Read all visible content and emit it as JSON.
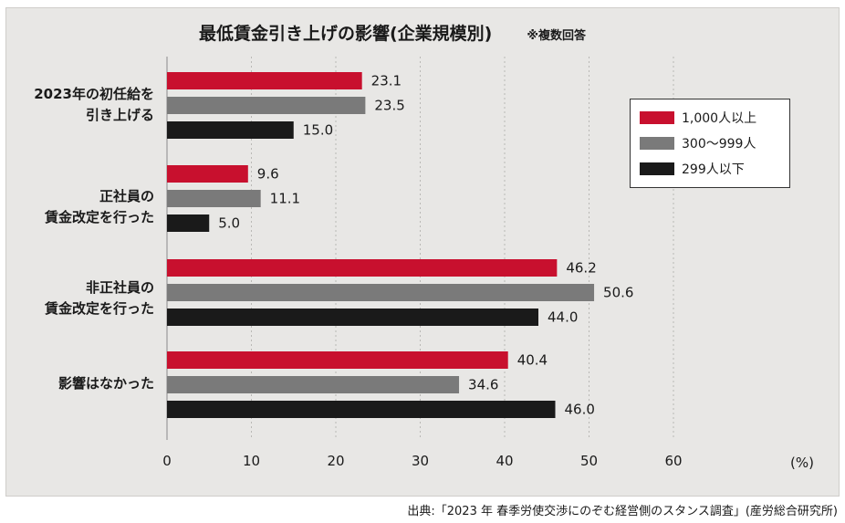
{
  "chart_data": {
    "type": "bar",
    "orientation": "horizontal",
    "title": "最低賃金引き上げの影響(企業規模別)",
    "note": "※複数回答",
    "categories": [
      "2023年の初任給を\n引き上げる",
      "正社員の\n賃金改定を行った",
      "非正社員の\n賃金改定を行った",
      "影響はなかった"
    ],
    "series": [
      {
        "name": "1,000人以上",
        "color": "#c8102e",
        "values": [
          23.1,
          9.6,
          46.2,
          40.4
        ]
      },
      {
        "name": "300〜999人",
        "color": "#7a7a7a",
        "values": [
          23.5,
          11.1,
          50.6,
          34.6
        ]
      },
      {
        "name": "299人以下",
        "color": "#1a1a1a",
        "values": [
          15.0,
          5.0,
          44.0,
          46.0
        ]
      }
    ],
    "xlim": [
      0,
      60
    ],
    "xticks": [
      0,
      10,
      20,
      30,
      40,
      50,
      60
    ],
    "unit": "(%)",
    "legend_position": "top-right",
    "grid": true
  },
  "source": "出典:「2023 年 春季労使交渉にのぞむ経営側のスタンス調査」(産労総合研究所)"
}
